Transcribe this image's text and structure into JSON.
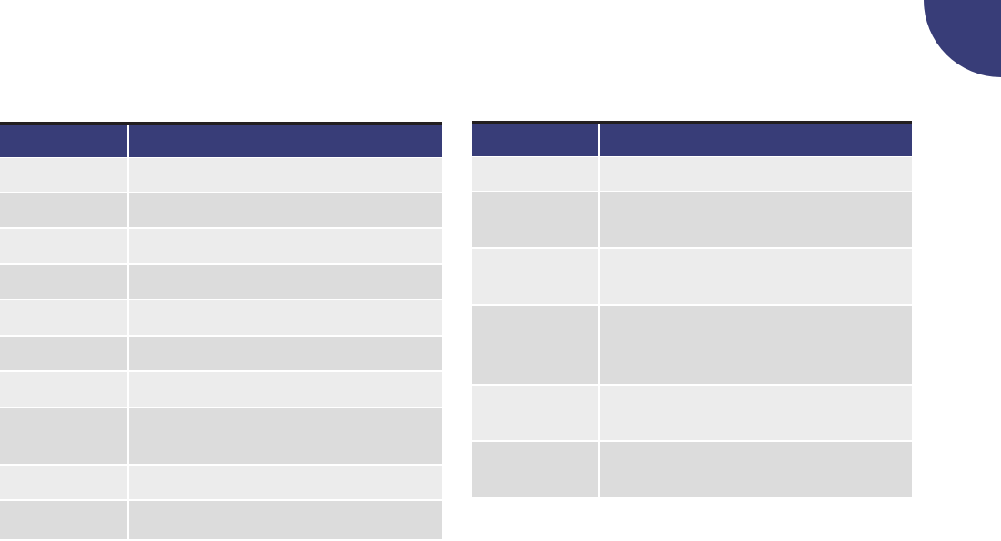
{
  "colors": {
    "header": "#383d78",
    "row_light": "#ececec",
    "row_dark": "#dcdcdc",
    "rule": "#231f20",
    "corner": "#383d78"
  },
  "tables": [
    {
      "header": [
        "",
        ""
      ],
      "rows": [
        [
          "",
          ""
        ],
        [
          "",
          ""
        ],
        [
          "",
          ""
        ],
        [
          "",
          ""
        ],
        [
          "",
          ""
        ],
        [
          "",
          ""
        ],
        [
          "",
          ""
        ],
        [
          "",
          ""
        ],
        [
          "",
          ""
        ],
        [
          "",
          ""
        ]
      ]
    },
    {
      "header": [
        "",
        ""
      ],
      "rows": [
        [
          "",
          ""
        ],
        [
          "",
          ""
        ],
        [
          "",
          ""
        ],
        [
          "",
          ""
        ],
        [
          "",
          ""
        ],
        [
          "",
          ""
        ]
      ]
    }
  ]
}
